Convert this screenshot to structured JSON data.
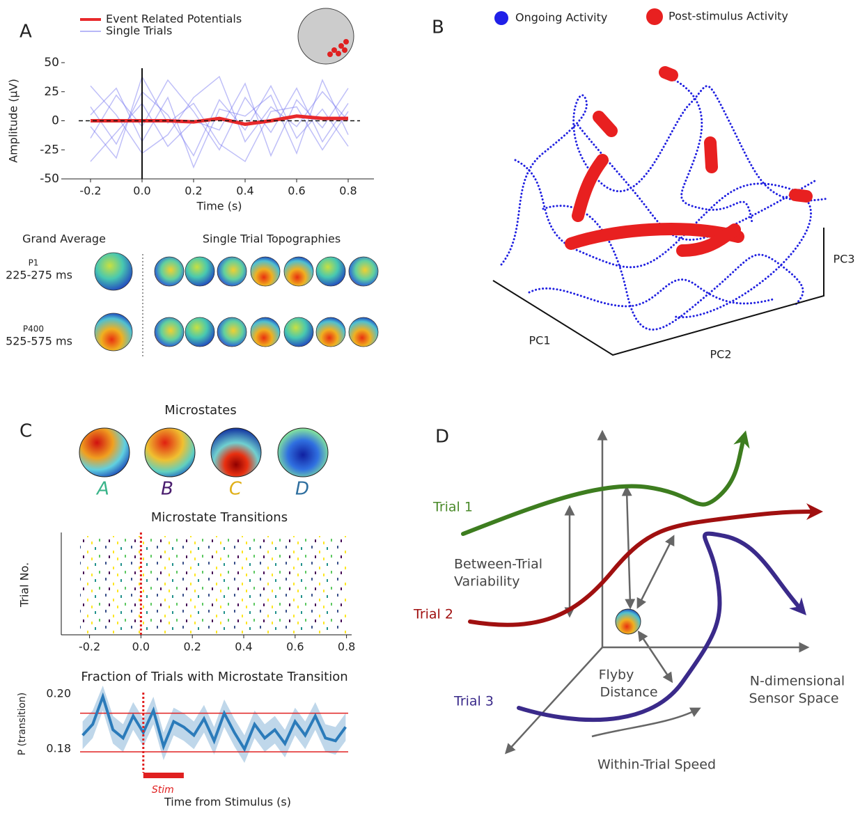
{
  "panel_labels": [
    "A",
    "B",
    "C",
    "D"
  ],
  "chart_data": [
    {
      "type": "line",
      "xlabel": "Time (s)",
      "ylabel": "Amplitude (μV)",
      "xlim": [
        -0.3,
        0.9
      ],
      "ylim": [
        -50,
        50
      ],
      "xticks": [
        -0.2,
        {
          "value": 0,
          "label": "0.0"
        },
        0.2,
        0.4,
        0.6,
        0.8
      ],
      "yticks": [
        50,
        25,
        0,
        -25,
        -50
      ],
      "hline": 0,
      "vline": 0,
      "x": [
        -0.2,
        -0.1,
        0,
        0.1,
        0.2,
        0.3,
        0.4,
        0.5,
        0.6,
        0.7,
        0.8
      ],
      "series": [
        {
          "name": "Event Related Potentials",
          "color": "#e8292b",
          "values": [
            0,
            0,
            0,
            0,
            -1,
            2,
            -3,
            0,
            4,
            2,
            2
          ]
        },
        {
          "name": "Single Trials",
          "color": "#7070f0",
          "values": [
            12,
            -20,
            25,
            5,
            -30,
            18,
            -8,
            30,
            -15,
            10,
            -22
          ]
        },
        {
          "color": "#7070f0",
          "values": [
            -15,
            22,
            -5,
            35,
            8,
            -25,
            20,
            -10,
            28,
            -18,
            15
          ]
        },
        {
          "color": "#7070f0",
          "values": [
            30,
            5,
            -28,
            -12,
            20,
            38,
            -18,
            12,
            -5,
            25,
            0
          ]
        },
        {
          "color": "#7070f0",
          "values": [
            -35,
            -10,
            15,
            -22,
            0,
            -8,
            32,
            -30,
            18,
            -6,
            28
          ]
        },
        {
          "color": "#7070f0",
          "values": [
            5,
            28,
            -18,
            20,
            -40,
            10,
            4,
            22,
            -28,
            35,
            -12
          ]
        },
        {
          "color": "#7070f0",
          "values": [
            -5,
            -32,
            38,
            -2,
            15,
            -20,
            -35,
            8,
            12,
            -25,
            8
          ]
        }
      ]
    },
    {
      "type": "raster",
      "title": "Microstate Transitions",
      "ylabel": "Trial No.",
      "xlim": [
        -0.31,
        0.82
      ],
      "xticks": [
        -0.2,
        {
          "value": 0,
          "label": "0.0"
        },
        0.2,
        0.4,
        0.6,
        0.8
      ],
      "vline": 0
    },
    {
      "type": "line",
      "title": "Fraction of Trials with Microstate Transition",
      "ylabel": "P (transition)",
      "xlabel": "Time from Stimulus (s)",
      "xlim": [
        -0.25,
        0.81
      ],
      "ylim": [
        0.174,
        0.203
      ],
      "yticks": [
        {
          "value": 0.18,
          "label": "0.18"
        },
        {
          "value": 0.2,
          "label": "0.20"
        }
      ],
      "thresholds": [
        0.193,
        0.179
      ],
      "vline": 0,
      "stim": {
        "label": "Stim",
        "range": [
          0,
          0.16
        ]
      },
      "x": [
        -0.24,
        -0.2,
        -0.16,
        -0.12,
        -0.08,
        -0.04,
        0,
        0.04,
        0.08,
        0.12,
        0.16,
        0.2,
        0.24,
        0.28,
        0.32,
        0.36,
        0.4,
        0.44,
        0.48,
        0.52,
        0.56,
        0.6,
        0.64,
        0.68,
        0.72,
        0.76,
        0.8
      ],
      "series": [
        {
          "color": "#2b7bba",
          "values": [
            0.185,
            0.189,
            0.199,
            0.187,
            0.184,
            0.192,
            0.186,
            0.194,
            0.181,
            0.19,
            0.188,
            0.185,
            0.191,
            0.183,
            0.193,
            0.186,
            0.18,
            0.189,
            0.184,
            0.187,
            0.182,
            0.19,
            0.185,
            0.192,
            0.184,
            0.183,
            0.188
          ],
          "upper": [
            0.19,
            0.194,
            0.203,
            0.192,
            0.189,
            0.197,
            0.191,
            0.199,
            0.186,
            0.195,
            0.193,
            0.19,
            0.196,
            0.188,
            0.198,
            0.191,
            0.185,
            0.194,
            0.189,
            0.192,
            0.187,
            0.195,
            0.19,
            0.197,
            0.189,
            0.188,
            0.193
          ],
          "lower": [
            0.18,
            0.184,
            0.194,
            0.182,
            0.179,
            0.187,
            0.181,
            0.189,
            0.176,
            0.185,
            0.183,
            0.18,
            0.186,
            0.178,
            0.188,
            0.181,
            0.175,
            0.184,
            0.179,
            0.182,
            0.177,
            0.185,
            0.18,
            0.187,
            0.179,
            0.178,
            0.183
          ]
        }
      ]
    }
  ],
  "topographies": {
    "grand_average": "Grand Average",
    "single_trials": "Single Trial Topographies",
    "rows": [
      {
        "component": "P1",
        "window": "225-275 ms"
      },
      {
        "component": "P400",
        "window": "525-575 ms"
      }
    ]
  },
  "panel_b": {
    "legend": [
      "Ongoing Activity",
      "Post-stimulus Activity"
    ],
    "axes": [
      "PC1",
      "PC2",
      "PC3"
    ]
  },
  "microstates": {
    "title": "Microstates",
    "labels": [
      "A",
      "B",
      "C",
      "D"
    ]
  },
  "diagram": {
    "trials": [
      "Trial 1",
      "Trial 2",
      "Trial 3"
    ],
    "between": [
      "Between-Trial",
      "Variability"
    ],
    "flyby": [
      "Flyby",
      "Distance"
    ],
    "space": [
      "N-dimensional",
      "Sensor Space"
    ],
    "speed": "Within-Trial Speed"
  }
}
